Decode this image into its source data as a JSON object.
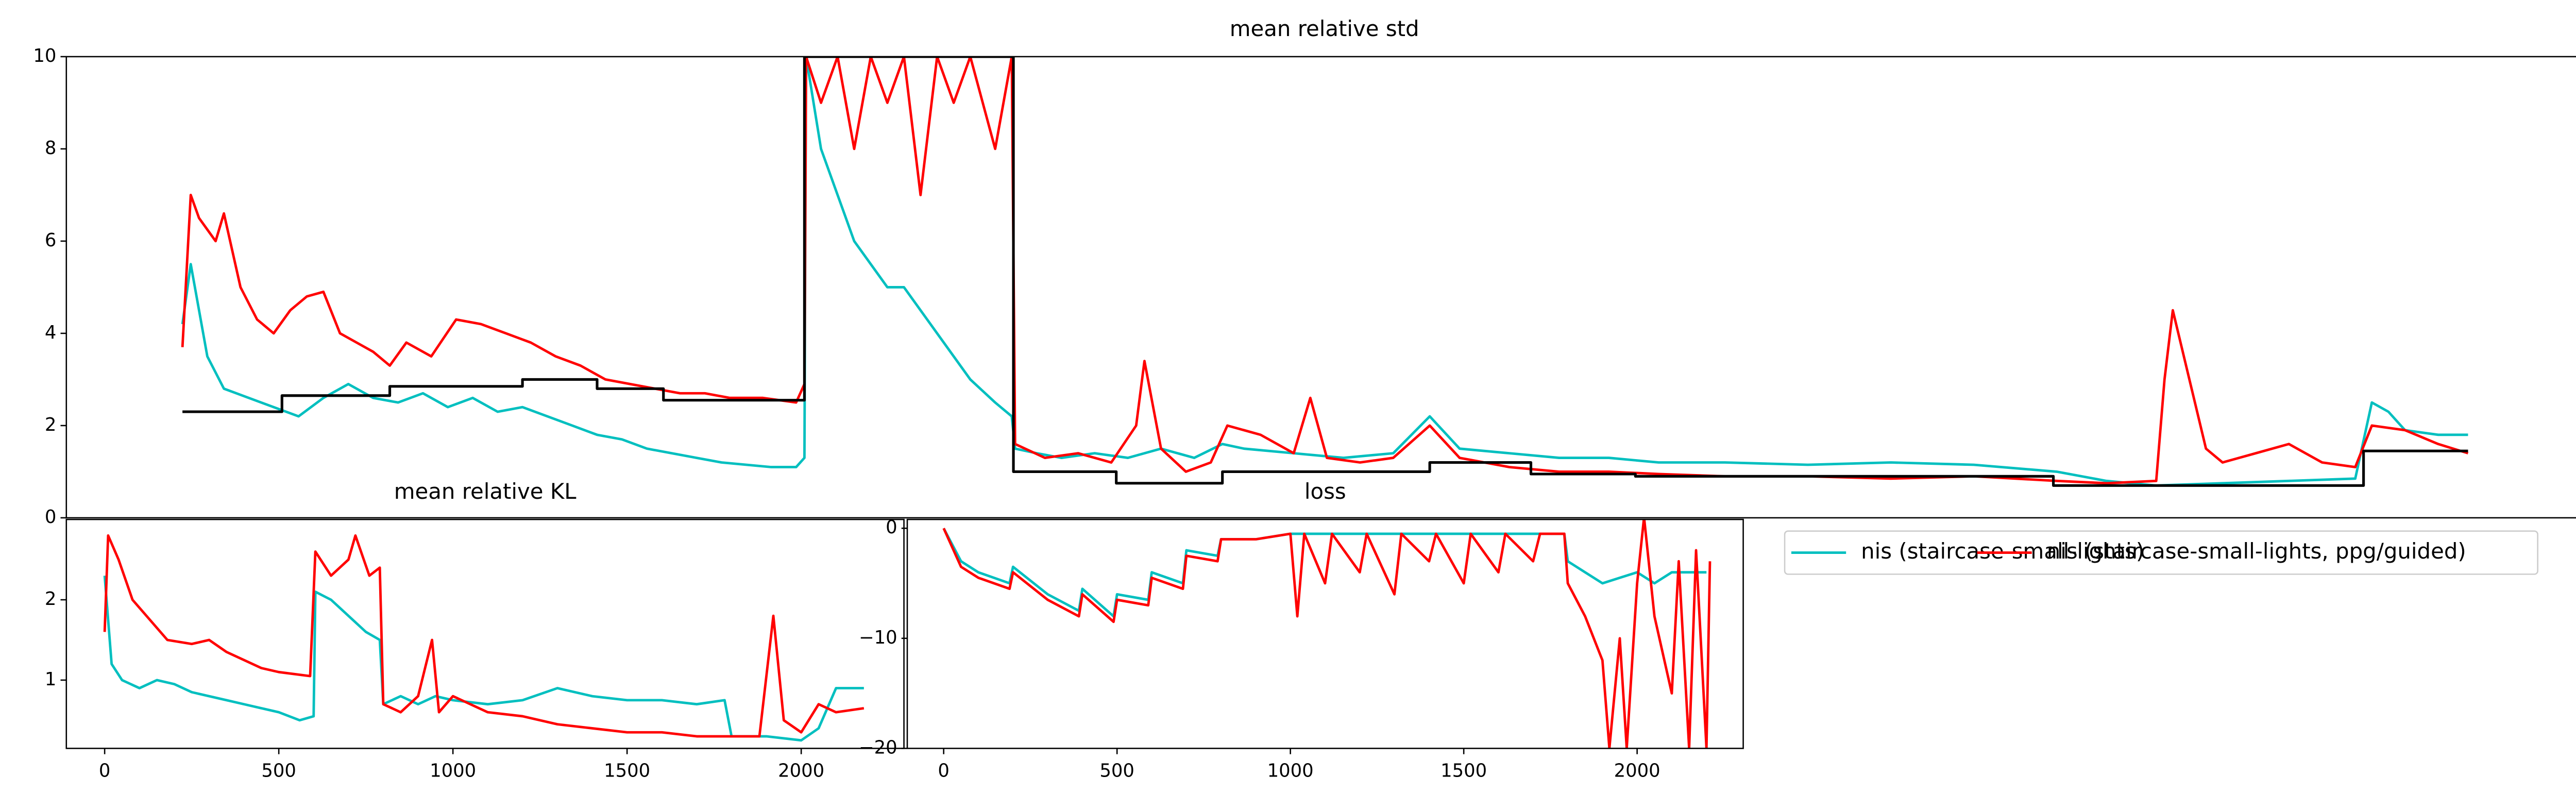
{
  "chart_data": [
    {
      "type": "line",
      "title": "mean relative std",
      "xlim": [
        0,
        1517
      ],
      "ylim": [
        0,
        10
      ],
      "yticks": [
        0,
        2,
        4,
        6,
        8,
        10
      ],
      "legend": "upper left",
      "series": [
        {
          "name": "nis (staircase-small-lights)",
          "color": "#00bfbf",
          "x": [
            70,
            75,
            85,
            95,
            110,
            125,
            140,
            155,
            170,
            185,
            200,
            215,
            230,
            245,
            260,
            275,
            290,
            305,
            320,
            335,
            350,
            365,
            380,
            395,
            410,
            425,
            440,
            445,
            446,
            455,
            465,
            475,
            485,
            495,
            505,
            515,
            525,
            535,
            545,
            560,
            570,
            572,
            585,
            600,
            620,
            640,
            660,
            680,
            697,
            710,
            740,
            770,
            800,
            822,
            840,
            870,
            900,
            930,
            960,
            1000,
            1050,
            1100,
            1150,
            1200,
            1230,
            1260,
            1300,
            1340,
            1380,
            1390,
            1400,
            1410,
            1430,
            1448
          ],
          "values": [
            4.2,
            5.5,
            3.5,
            2.8,
            2.6,
            2.4,
            2.2,
            2.6,
            2.9,
            2.6,
            2.5,
            2.7,
            2.4,
            2.6,
            2.3,
            2.4,
            2.2,
            2.0,
            1.8,
            1.7,
            1.5,
            1.4,
            1.3,
            1.2,
            1.15,
            1.1,
            1.1,
            1.3,
            10,
            8,
            7,
            6,
            5.5,
            5,
            5,
            4.5,
            4,
            3.5,
            3,
            2.5,
            2.2,
            1.5,
            1.4,
            1.3,
            1.4,
            1.3,
            1.5,
            1.3,
            1.6,
            1.5,
            1.4,
            1.3,
            1.4,
            2.2,
            1.5,
            1.4,
            1.3,
            1.3,
            1.2,
            1.2,
            1.15,
            1.2,
            1.15,
            1.0,
            0.8,
            0.7,
            0.75,
            0.8,
            0.85,
            2.5,
            2.3,
            1.9,
            1.8,
            1.8
          ]
        },
        {
          "name": "nis (staircase-small-lights, ppg/guided)",
          "color": "#ff0000",
          "x": [
            70,
            75,
            80,
            90,
            95,
            105,
            115,
            125,
            135,
            145,
            155,
            165,
            175,
            185,
            195,
            205,
            220,
            235,
            250,
            265,
            280,
            295,
            310,
            325,
            340,
            355,
            370,
            385,
            400,
            420,
            440,
            445,
            446,
            455,
            465,
            475,
            485,
            495,
            505,
            515,
            525,
            535,
            545,
            560,
            570,
            572,
            590,
            610,
            630,
            645,
            650,
            660,
            675,
            690,
            700,
            720,
            740,
            750,
            760,
            780,
            800,
            822,
            840,
            870,
            900,
            930,
            960,
            1000,
            1050,
            1100,
            1150,
            1200,
            1230,
            1260,
            1265,
            1270,
            1280,
            1290,
            1300,
            1320,
            1340,
            1360,
            1380,
            1390,
            1410,
            1430,
            1448
          ],
          "values": [
            3.7,
            7.0,
            6.5,
            6.0,
            6.6,
            5.0,
            4.3,
            4.0,
            4.5,
            4.8,
            4.9,
            4.0,
            3.8,
            3.6,
            3.3,
            3.8,
            3.5,
            4.3,
            4.2,
            4.0,
            3.8,
            3.5,
            3.3,
            3.0,
            2.9,
            2.8,
            2.7,
            2.7,
            2.6,
            2.6,
            2.5,
            2.9,
            10,
            9,
            10,
            8,
            10,
            9,
            10,
            7,
            10,
            9,
            10,
            8,
            10,
            1.6,
            1.3,
            1.4,
            1.2,
            2.0,
            3.4,
            1.5,
            1.0,
            1.2,
            2.0,
            1.8,
            1.4,
            2.6,
            1.3,
            1.2,
            1.3,
            2.0,
            1.3,
            1.1,
            1.0,
            1.0,
            0.95,
            0.9,
            0.9,
            0.85,
            0.9,
            0.8,
            0.75,
            0.8,
            3.0,
            4.5,
            3.0,
            1.5,
            1.2,
            1.4,
            1.6,
            1.2,
            1.1,
            2.0,
            1.9,
            1.6,
            1.4
          ]
        },
        {
          "color": "#000000",
          "step": true,
          "x": [
            70,
            130,
            195,
            275,
            320,
            360,
            445,
            571,
            633,
            697,
            822,
            883,
            946,
            1198,
            1385,
            1448
          ],
          "values": [
            2.3,
            2.65,
            2.85,
            3.0,
            2.8,
            2.55,
            10,
            1.0,
            0.75,
            1.0,
            1.2,
            0.95,
            0.9,
            0.7,
            1.45,
            1.45
          ]
        }
      ]
    },
    {
      "type": "line",
      "title": "mean relative KL",
      "xlim": [
        -110,
        2295
      ],
      "ylim": [
        0.15,
        3.0
      ],
      "xticks": [
        0,
        500,
        1000,
        1500,
        2000
      ],
      "yticks": [
        1,
        2
      ],
      "series": [
        {
          "color": "#00bfbf",
          "x": [
            0,
            20,
            50,
            100,
            150,
            200,
            250,
            300,
            350,
            400,
            450,
            500,
            560,
            600,
            605,
            650,
            700,
            750,
            790,
            800,
            850,
            900,
            950,
            1000,
            1100,
            1200,
            1300,
            1400,
            1500,
            1600,
            1700,
            1780,
            1800,
            1900,
            2000,
            2050,
            2100,
            2180
          ],
          "values": [
            2.3,
            1.2,
            1.0,
            0.9,
            1.0,
            0.95,
            0.85,
            0.8,
            0.75,
            0.7,
            0.65,
            0.6,
            0.5,
            0.55,
            2.1,
            2.0,
            1.8,
            1.6,
            1.5,
            0.7,
            0.8,
            0.7,
            0.8,
            0.75,
            0.7,
            0.75,
            0.9,
            0.8,
            0.75,
            0.75,
            0.7,
            0.75,
            0.3,
            0.3,
            0.25,
            0.4,
            0.9,
            0.9
          ]
        },
        {
          "color": "#ff0000",
          "x": [
            0,
            10,
            40,
            80,
            120,
            180,
            250,
            300,
            350,
            400,
            450,
            500,
            590,
            605,
            650,
            700,
            720,
            760,
            790,
            800,
            850,
            900,
            940,
            960,
            1000,
            1100,
            1200,
            1300,
            1400,
            1500,
            1600,
            1700,
            1800,
            1880,
            1920,
            1950,
            2000,
            2050,
            2100,
            2180
          ],
          "values": [
            1.6,
            2.8,
            2.5,
            2.0,
            1.8,
            1.5,
            1.45,
            1.5,
            1.35,
            1.25,
            1.15,
            1.1,
            1.05,
            2.6,
            2.3,
            2.5,
            2.8,
            2.3,
            2.4,
            0.7,
            0.6,
            0.8,
            1.5,
            0.6,
            0.8,
            0.6,
            0.55,
            0.45,
            0.4,
            0.35,
            0.35,
            0.3,
            0.3,
            0.3,
            1.8,
            0.5,
            0.35,
            0.7,
            0.6,
            0.65
          ]
        }
      ]
    },
    {
      "type": "line",
      "title": "loss",
      "xlim": [
        -105,
        2306
      ],
      "ylim": [
        -20,
        0.8
      ],
      "xticks": [
        0,
        500,
        1000,
        1500,
        2000
      ],
      "yticks": [
        {
          "value": -20,
          "label": "−20"
        },
        {
          "value": -10,
          "label": "−10"
        },
        0
      ],
      "series": [
        {
          "color": "#00bfbf",
          "x": [
            0,
            50,
            100,
            190,
            200,
            300,
            390,
            400,
            490,
            500,
            590,
            600,
            690,
            700,
            790,
            800,
            900,
            1000,
            1200,
            1400,
            1600,
            1790,
            1800,
            1850,
            1900,
            1950,
            2000,
            2050,
            2100,
            2200
          ],
          "values": [
            0,
            -3,
            -4,
            -5,
            -3.5,
            -6,
            -7.5,
            -5.5,
            -8,
            -6,
            -6.5,
            -4,
            -5,
            -2,
            -2.5,
            -1,
            -1,
            -0.5,
            -0.5,
            -0.5,
            -0.5,
            -0.5,
            -3,
            -4,
            -5,
            -4.5,
            -4,
            -5,
            -4,
            -4
          ]
        },
        {
          "color": "#ff0000",
          "x": [
            0,
            50,
            100,
            190,
            200,
            300,
            390,
            400,
            490,
            500,
            590,
            600,
            690,
            700,
            790,
            800,
            900,
            1000,
            1020,
            1040,
            1100,
            1120,
            1200,
            1220,
            1300,
            1320,
            1400,
            1420,
            1500,
            1520,
            1600,
            1620,
            1700,
            1720,
            1790,
            1800,
            1850,
            1900,
            1920,
            1950,
            1970,
            2000,
            2020,
            2050,
            2100,
            2120,
            2150,
            2170,
            2200,
            2210
          ],
          "values": [
            0,
            -3.5,
            -4.5,
            -5.5,
            -4,
            -6.5,
            -8,
            -6,
            -8.5,
            -6.5,
            -7,
            -4.5,
            -5.5,
            -2.5,
            -3,
            -1,
            -1,
            -0.5,
            -8,
            -0.5,
            -5,
            -0.5,
            -4,
            -0.5,
            -6,
            -0.5,
            -3,
            -0.5,
            -5,
            -0.5,
            -4,
            -0.5,
            -3,
            -0.5,
            -0.5,
            -5,
            -8,
            -12,
            -20,
            -10,
            -20,
            -5,
            1,
            -8,
            -15,
            -3,
            -20,
            -2,
            -20,
            -3
          ]
        }
      ]
    }
  ]
}
